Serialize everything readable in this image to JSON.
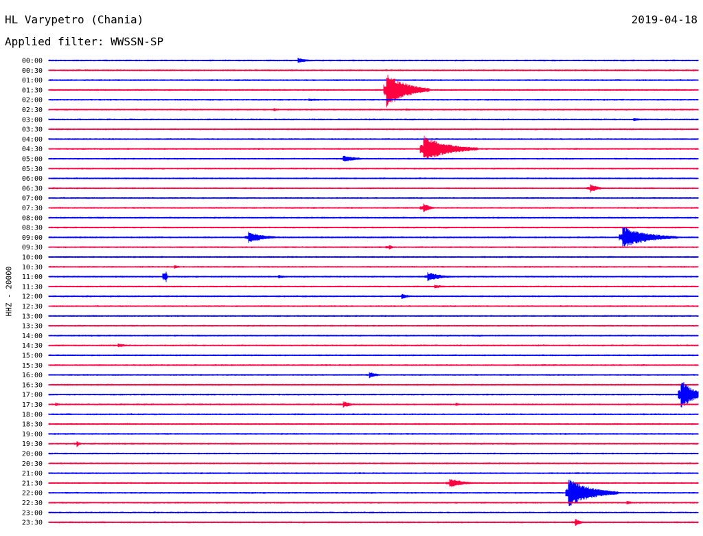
{
  "header": {
    "station": "HL Varypetro (Chania)",
    "date": "2019-04-18",
    "filter": "Applied filter: WWSSN-SP",
    "channel": "HHZ - 20000"
  },
  "colors": {
    "even_row": "#0000ff",
    "odd_row": "#ff0040"
  },
  "chart_data": {
    "type": "line",
    "title": "HL Varypetro (Chania)",
    "subtitle": "Applied filter: WWSSN-SP",
    "ylabel": "HHZ - 20000",
    "row_labels": [
      "00:00",
      "00:30",
      "01:00",
      "01:30",
      "02:00",
      "02:30",
      "03:00",
      "03:30",
      "04:00",
      "04:30",
      "05:00",
      "05:30",
      "06:00",
      "06:30",
      "07:00",
      "07:30",
      "08:00",
      "08:30",
      "09:00",
      "09:30",
      "10:00",
      "10:30",
      "11:00",
      "11:30",
      "12:00",
      "12:30",
      "13:00",
      "13:30",
      "14:00",
      "14:30",
      "15:00",
      "15:30",
      "16:00",
      "16:30",
      "17:00",
      "17:30",
      "18:00",
      "18:30",
      "19:00",
      "19:30",
      "20:00",
      "20:30",
      "21:00",
      "21:30",
      "22:00",
      "22:30",
      "23:00",
      "23:30"
    ],
    "row_minutes": 30,
    "events": [
      {
        "row": 0,
        "minute": 11.5,
        "amplitude": 4,
        "duration": 1.2
      },
      {
        "row": 3,
        "minute": 15.6,
        "amplitude": 26,
        "duration": 2.0
      },
      {
        "row": 4,
        "minute": 12.0,
        "amplitude": 2,
        "duration": 2.5
      },
      {
        "row": 5,
        "minute": 10.4,
        "amplitude": 3,
        "duration": 0.4
      },
      {
        "row": 5,
        "minute": 16.5,
        "amplitude": 2,
        "duration": 0.8
      },
      {
        "row": 6,
        "minute": 27.0,
        "amplitude": 3,
        "duration": 0.8
      },
      {
        "row": 9,
        "minute": 17.3,
        "amplitude": 20,
        "duration": 2.5
      },
      {
        "row": 10,
        "minute": 13.6,
        "amplitude": 5,
        "duration": 1.5
      },
      {
        "row": 13,
        "minute": 25.0,
        "amplitude": 7,
        "duration": 0.8
      },
      {
        "row": 15,
        "minute": 17.3,
        "amplitude": 8,
        "duration": 0.6
      },
      {
        "row": 18,
        "minute": 9.2,
        "amplitude": 9,
        "duration": 1.6
      },
      {
        "row": 18,
        "minute": 26.5,
        "amplitude": 16,
        "duration": 2.6
      },
      {
        "row": 19,
        "minute": 15.7,
        "amplitude": 6,
        "duration": 0.3
      },
      {
        "row": 21,
        "minute": 5.8,
        "amplitude": 3,
        "duration": 0.6
      },
      {
        "row": 22,
        "minute": 5.4,
        "amplitude": 16,
        "duration": 0.1
      },
      {
        "row": 22,
        "minute": 10.6,
        "amplitude": 3,
        "duration": 0.8
      },
      {
        "row": 22,
        "minute": 17.5,
        "amplitude": 7,
        "duration": 1.4
      },
      {
        "row": 23,
        "minute": 17.8,
        "amplitude": 3,
        "duration": 1.2
      },
      {
        "row": 24,
        "minute": 16.3,
        "amplitude": 4,
        "duration": 0.8
      },
      {
        "row": 29,
        "minute": 3.2,
        "amplitude": 3,
        "duration": 1.0
      },
      {
        "row": 32,
        "minute": 14.8,
        "amplitude": 5,
        "duration": 0.8
      },
      {
        "row": 34,
        "minute": 29.2,
        "amplitude": 24,
        "duration": 1.2
      },
      {
        "row": 35,
        "minute": 13.6,
        "amplitude": 5,
        "duration": 0.8
      },
      {
        "row": 35,
        "minute": 0.3,
        "amplitude": 3,
        "duration": 0.5
      },
      {
        "row": 35,
        "minute": 18.8,
        "amplitude": 3,
        "duration": 0.4
      },
      {
        "row": 39,
        "minute": 1.3,
        "amplitude": 5,
        "duration": 0.3
      },
      {
        "row": 43,
        "minute": 18.5,
        "amplitude": 7,
        "duration": 1.5
      },
      {
        "row": 44,
        "minute": 24.0,
        "amplitude": 22,
        "duration": 2.3
      },
      {
        "row": 45,
        "minute": 26.7,
        "amplitude": 3,
        "duration": 0.6
      },
      {
        "row": 47,
        "minute": 24.3,
        "amplitude": 6,
        "duration": 0.6
      }
    ]
  }
}
